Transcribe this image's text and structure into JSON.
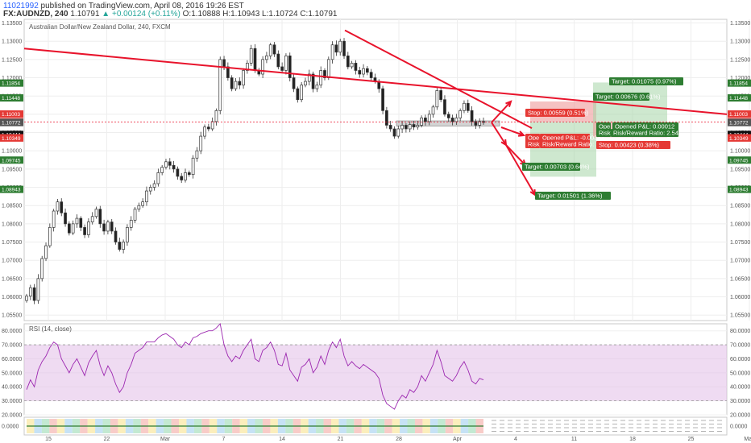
{
  "header": {
    "user_id": "11021992",
    "published": "published on TradingView.com, April 08, 2016 19:26 EST",
    "symbol": "FX:AUDNZD, 240",
    "last": "1.10791",
    "change": "▲ +0.00124 (+0.11%)",
    "ohlc": "O:1.10888 H:1.10943 L:1.10724 C:1.10791"
  },
  "colors": {
    "bull": "#26a69a",
    "bear": "#ef5350",
    "trendline": "#e8132b",
    "rsi_line": "#9c27b0",
    "rsi_band": "#e1bee7",
    "target_zone": "#a5d6a7",
    "stop_zone": "#ef9a9a"
  },
  "chart_data": [
    {
      "type": "candlestick",
      "title": "Australian Dollar/New Zealand Dollar, 240, FXCM",
      "ylim": [
        1.0535,
        1.136
      ],
      "y_ticks": [
        "1.13500",
        "1.13000",
        "1.12500",
        "1.12000",
        "1.11500",
        "1.11000",
        "1.10500",
        "1.10000",
        "1.09500",
        "1.09000",
        "1.08500",
        "1.08000",
        "1.07500",
        "1.07000",
        "1.06500",
        "1.06000",
        "1.05500"
      ],
      "x_ticks": [
        "15",
        "22",
        "Mar",
        "7",
        "14",
        "21",
        "28",
        "Apr",
        "4",
        "11",
        "18",
        "25",
        "May",
        "9"
      ],
      "current_price": 1.10791,
      "closes": [
        1.0602,
        1.0625,
        1.059,
        1.065,
        1.0705,
        1.074,
        1.079,
        1.0835,
        1.086,
        1.083,
        1.08,
        1.0775,
        1.08,
        1.0815,
        1.079,
        1.077,
        1.0805,
        1.082,
        1.084,
        1.08,
        1.078,
        1.0805,
        1.078,
        1.075,
        1.073,
        1.075,
        1.079,
        1.081,
        1.084,
        1.085,
        1.086,
        1.089,
        1.09,
        1.091,
        1.094,
        1.0955,
        1.097,
        1.096,
        1.095,
        1.093,
        1.092,
        1.094,
        1.0935,
        1.098,
        1.1,
        1.104,
        1.1065,
        1.106,
        1.108,
        1.111,
        1.125,
        1.123,
        1.12,
        1.117,
        1.119,
        1.118,
        1.122,
        1.124,
        1.128,
        1.122,
        1.121,
        1.125,
        1.126,
        1.129,
        1.1265,
        1.123,
        1.122,
        1.126,
        1.12,
        1.117,
        1.114,
        1.118,
        1.119,
        1.121,
        1.117,
        1.118,
        1.122,
        1.12,
        1.125,
        1.129,
        1.127,
        1.13,
        1.126,
        1.123,
        1.124,
        1.122,
        1.121,
        1.1225,
        1.1215,
        1.12,
        1.119,
        1.117,
        1.111,
        1.107,
        1.106,
        1.104,
        1.106,
        1.107,
        1.106,
        1.1072,
        1.1065,
        1.107,
        1.109,
        1.108,
        1.11,
        1.112,
        1.1165,
        1.114,
        1.11,
        1.109,
        1.108,
        1.109,
        1.111,
        1.113,
        1.111,
        1.108,
        1.107,
        1.108,
        1.1079
      ],
      "support_zone": [
        1.1068,
        1.1082
      ],
      "rsi": {
        "title": "RSI (14, close)",
        "ylim": [
          20,
          85
        ],
        "y_ticks": [
          "80.0000",
          "70.0000",
          "60.0000",
          "50.0000",
          "40.0000",
          "30.0000",
          "20.0000"
        ],
        "upper_band": 70,
        "lower_band": 30,
        "values": [
          38,
          45,
          40,
          52,
          58,
          62,
          68,
          72,
          70,
          60,
          55,
          50,
          56,
          60,
          54,
          48,
          57,
          62,
          66,
          55,
          48,
          55,
          50,
          42,
          36,
          40,
          50,
          56,
          64,
          66,
          68,
          72,
          72,
          72,
          75,
          77,
          78,
          76,
          74,
          70,
          68,
          72,
          70,
          75,
          76,
          78,
          79,
          80,
          80,
          82,
          85,
          70,
          62,
          58,
          62,
          60,
          66,
          70,
          74,
          60,
          58,
          66,
          68,
          72,
          66,
          56,
          55,
          64,
          52,
          48,
          44,
          54,
          56,
          60,
          50,
          54,
          62,
          56,
          66,
          72,
          68,
          74,
          62,
          55,
          58,
          55,
          53,
          56,
          54,
          52,
          50,
          46,
          34,
          28,
          26,
          24,
          30,
          34,
          32,
          38,
          36,
          40,
          48,
          44,
          50,
          56,
          66,
          58,
          48,
          46,
          44,
          48,
          54,
          58,
          52,
          44,
          42,
          46,
          45
        ]
      },
      "mini_indicator": {
        "y_ticks": [
          "0.0000"
        ]
      },
      "price_labels": [
        "1.11854",
        "1.11448",
        "1.11007",
        "1.11003",
        "1.10791",
        "1.10779",
        "1.10772",
        "1.10448",
        "1.10444",
        "1.10356",
        "1.10349",
        "1.09745",
        "1.08943"
      ],
      "annotations": [
        "Stop: 0.00559 (0.51%)",
        "Opened P&L: -0.00347",
        "Risk/Reward Ratio: 2",
        "Target: 0.00703 (0.64%)",
        "Target: 0.01501 (1.36%)",
        "Target: 0.01075 (0.97%)",
        "Target: 0.00676 (0.61%)",
        "Opened P&L: 0.00012",
        "Risk/Reward Ratio: 2.54",
        "Stop: 0.00423 (0.38%)",
        "Ope",
        "Risk"
      ]
    }
  ]
}
